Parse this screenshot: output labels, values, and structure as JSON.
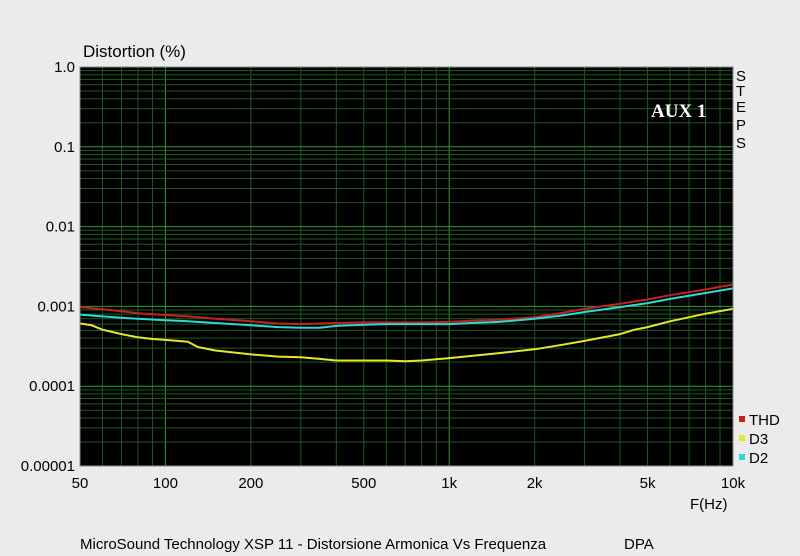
{
  "chart_data": {
    "type": "line",
    "title": "",
    "ylabel": "Distortion (%)",
    "xlabel": "F(Hz)",
    "x_scale": "log",
    "y_scale": "log",
    "xlim": [
      50,
      10000
    ],
    "ylim": [
      1e-05,
      1.0
    ],
    "grid": true,
    "x_ticks": [
      {
        "v": 50,
        "label": "50"
      },
      {
        "v": 100,
        "label": "100"
      },
      {
        "v": 200,
        "label": "200"
      },
      {
        "v": 500,
        "label": "500"
      },
      {
        "v": 1000,
        "label": "1k"
      },
      {
        "v": 2000,
        "label": "2k"
      },
      {
        "v": 5000,
        "label": "5k"
      },
      {
        "v": 10000,
        "label": "10k"
      }
    ],
    "y_ticks": [
      {
        "v": 1.0,
        "label": "1.0"
      },
      {
        "v": 0.1,
        "label": "0.1"
      },
      {
        "v": 0.01,
        "label": "0.01"
      },
      {
        "v": 0.001,
        "label": "0.001"
      },
      {
        "v": 0.0001,
        "label": "0.0001"
      },
      {
        "v": 1e-05,
        "label": "0.00001"
      }
    ],
    "annotation": "AUX 1",
    "side_label": [
      "S",
      "T",
      "E",
      "P",
      "S"
    ],
    "legend_position": "bottom-right",
    "series": [
      {
        "name": "THD",
        "color": "#c8201e",
        "x": [
          50,
          60,
          70,
          80,
          100,
          120,
          150,
          200,
          250,
          300,
          350,
          400,
          500,
          600,
          700,
          800,
          1000,
          1200,
          1500,
          2000,
          2500,
          3000,
          4000,
          5000,
          6000,
          8000,
          10000
        ],
        "y": [
          0.00098,
          0.00092,
          0.00087,
          0.00082,
          0.00078,
          0.00075,
          0.0007,
          0.00065,
          0.00061,
          0.0006,
          0.00061,
          0.00062,
          0.00063,
          0.00063,
          0.00063,
          0.00063,
          0.00064,
          0.00066,
          0.00068,
          0.00073,
          0.00083,
          0.00093,
          0.00108,
          0.00122,
          0.00138,
          0.00163,
          0.00188
        ]
      },
      {
        "name": "D3",
        "color": "#e6e62a",
        "x": [
          50,
          55,
          60,
          70,
          80,
          90,
          100,
          120,
          130,
          150,
          200,
          250,
          300,
          350,
          400,
          500,
          600,
          700,
          800,
          1000,
          1200,
          1500,
          2000,
          2500,
          3000,
          4000,
          4500,
          5000,
          6000,
          8000,
          10000
        ],
        "y": [
          0.00061,
          0.00058,
          0.00051,
          0.00045,
          0.00041,
          0.00039,
          0.00038,
          0.00036,
          0.00031,
          0.00028,
          0.00025,
          0.000235,
          0.00023,
          0.00022,
          0.00021,
          0.00021,
          0.00021,
          0.000205,
          0.00021,
          0.000225,
          0.00024,
          0.00026,
          0.00029,
          0.00033,
          0.00037,
          0.00045,
          0.00051,
          0.00055,
          0.00065,
          0.00081,
          0.00093
        ]
      },
      {
        "name": "D2",
        "color": "#2fd8d8",
        "x": [
          50,
          60,
          70,
          80,
          100,
          120,
          150,
          200,
          250,
          300,
          350,
          400,
          500,
          600,
          700,
          800,
          1000,
          1200,
          1500,
          2000,
          2500,
          3000,
          4000,
          5000,
          6000,
          8000,
          10000
        ],
        "y": [
          0.00079,
          0.00075,
          0.00072,
          0.0007,
          0.00067,
          0.00065,
          0.00062,
          0.00058,
          0.00055,
          0.00054,
          0.00054,
          0.00057,
          0.00059,
          0.0006,
          0.0006,
          0.0006,
          0.0006,
          0.00062,
          0.00064,
          0.0007,
          0.00077,
          0.00085,
          0.00098,
          0.0011,
          0.00124,
          0.00147,
          0.00168
        ]
      }
    ]
  },
  "footer": {
    "caption": "MicroSound Technology XSP 11 - Distorsione Armonica Vs Frequenza",
    "tag": "DPA"
  }
}
